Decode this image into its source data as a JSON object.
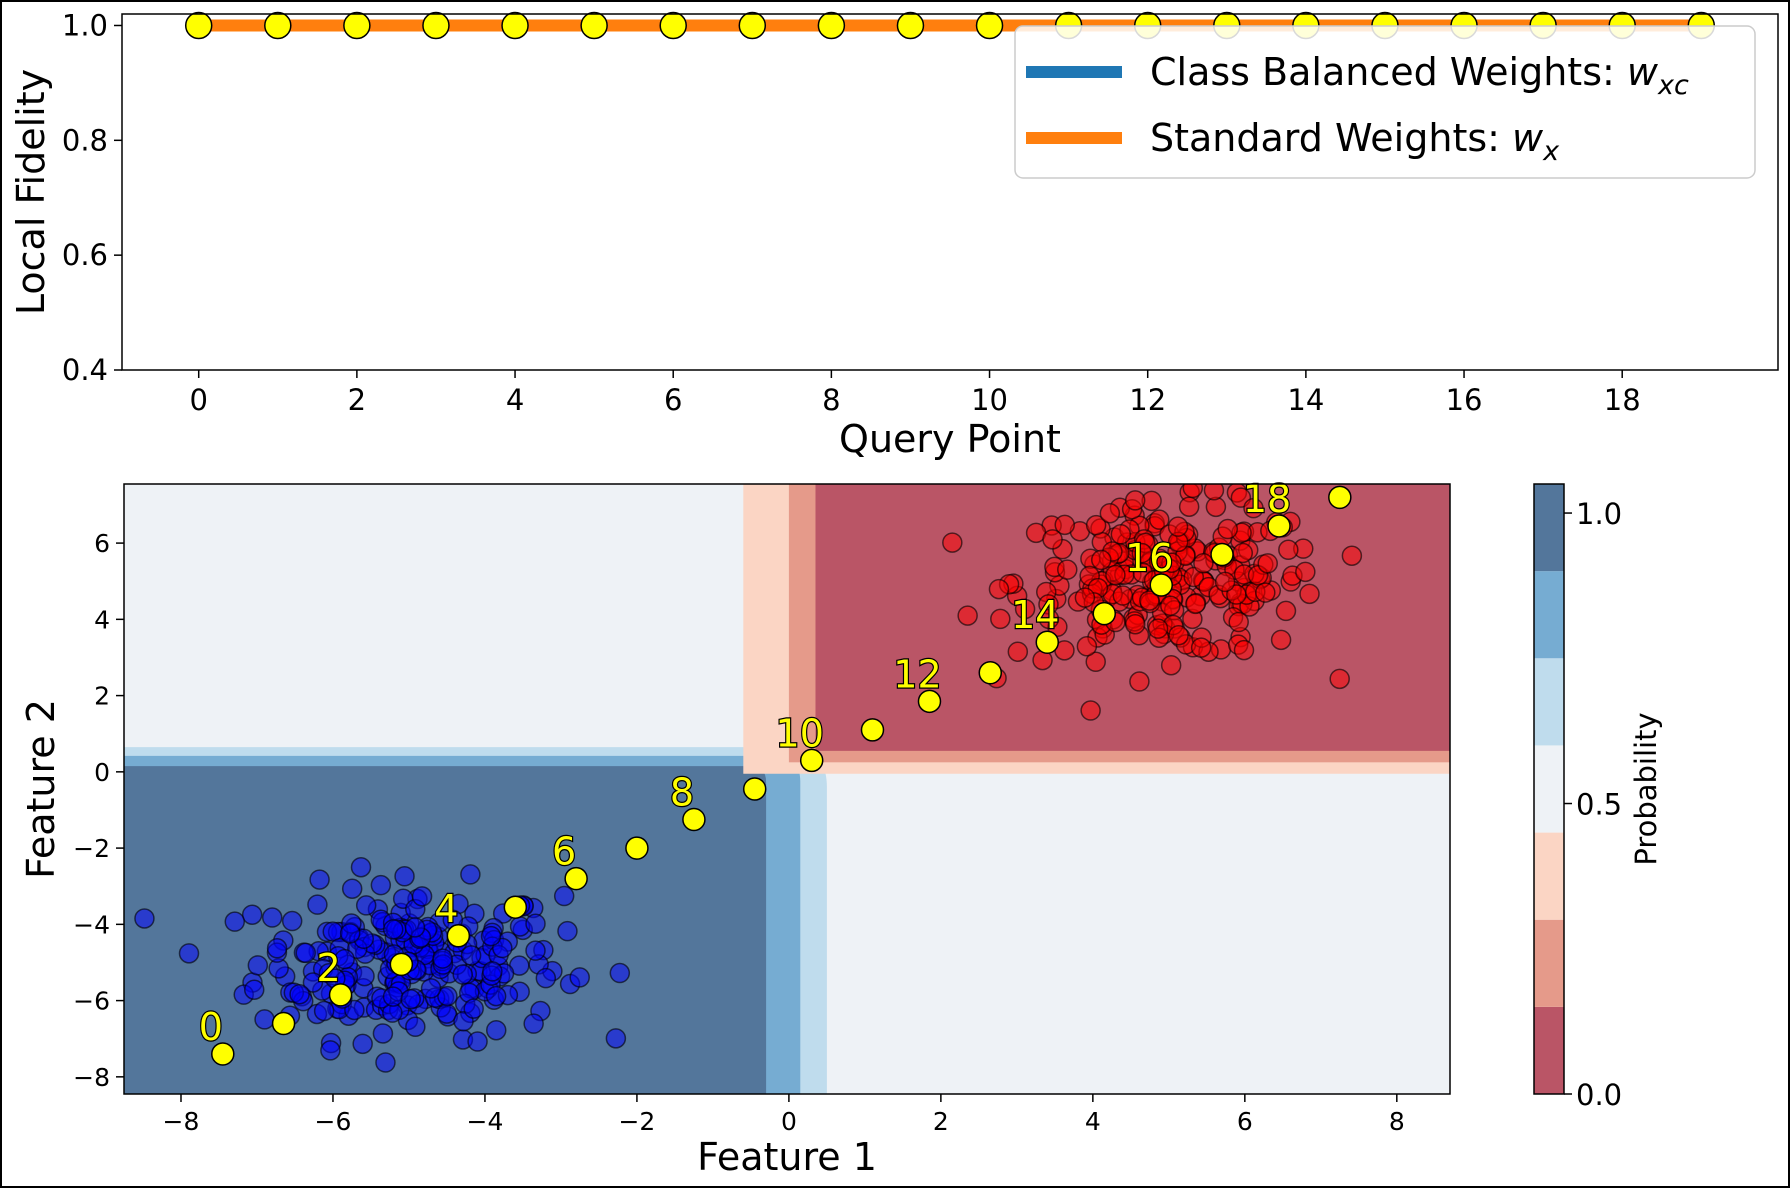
{
  "chart_data": [
    {
      "type": "line",
      "xlabel": "Query Point",
      "ylabel": "Local Fidelity",
      "xlim": [
        -0.97,
        19.97
      ],
      "ylim": [
        0.4,
        1.02
      ],
      "xticks": [
        0,
        2,
        4,
        6,
        8,
        10,
        12,
        14,
        16,
        18
      ],
      "yticks": [
        "0.4",
        "0.6",
        "0.8",
        "1.0"
      ],
      "ytick_values": [
        0.4,
        0.6,
        0.8,
        1.0
      ],
      "x": [
        0,
        1,
        2,
        3,
        4,
        5,
        6,
        7,
        8,
        9,
        10,
        11,
        12,
        13,
        14,
        15,
        16,
        17,
        18,
        19
      ],
      "series": [
        {
          "name": "Class Balanced Weights: ",
          "math": "w",
          "sub": "xc",
          "color": "#1f77b4",
          "values": [
            1,
            1,
            1,
            1,
            1,
            1,
            1,
            1,
            1,
            1,
            1,
            1,
            1,
            1,
            1,
            1,
            1,
            1,
            1,
            1
          ]
        },
        {
          "name": "Standard Weights: ",
          "math": "w",
          "sub": "x",
          "color": "#ff7f0e",
          "values": [
            1,
            1,
            1,
            1,
            1,
            1,
            1,
            1,
            1,
            1,
            1,
            1,
            1,
            1,
            1,
            1,
            1,
            1,
            1,
            1
          ]
        }
      ],
      "markers": {
        "color": "#ffff00",
        "edge": "#000000",
        "values": [
          1,
          1,
          1,
          1,
          1,
          1,
          1,
          1,
          1,
          1,
          1,
          1,
          1,
          1,
          1,
          1,
          1,
          1,
          1,
          1
        ]
      },
      "grid": false,
      "legend": "top-right"
    },
    {
      "type": "scatter",
      "xlabel": "Feature 1",
      "ylabel": "Feature 2",
      "xlim": [
        -8.75,
        8.7
      ],
      "ylim": [
        -8.45,
        7.55
      ],
      "xticks": [
        "−8",
        "−6",
        "−4",
        "−2",
        "0",
        "2",
        "4",
        "6",
        "8"
      ],
      "xtick_values": [
        -8,
        -6,
        -4,
        -2,
        0,
        2,
        4,
        6,
        8
      ],
      "yticks": [
        "−8",
        "−6",
        "−4",
        "−2",
        "0",
        "2",
        "4",
        "6"
      ],
      "ytick_values": [
        -8,
        -6,
        -4,
        -2,
        0,
        2,
        4,
        6
      ],
      "background": {
        "type": "contourf",
        "levels": [
          0,
          0.15,
          0.3,
          0.45,
          0.6,
          0.75,
          0.9,
          1.05
        ],
        "colors": [
          "#ba5566",
          "#e59a8a",
          "#fbd5c4",
          "#eef2f6",
          "#bfdced",
          "#76acd2",
          "#53769b"
        ],
        "regions": [
          {
            "level_index": 0,
            "x": [
              0.35,
              8.7
            ],
            "y": [
              0.55,
              7.55
            ]
          },
          {
            "level_index": 6,
            "x": [
              -8.75,
              -0.3
            ],
            "y": [
              -8.45,
              0.15
            ]
          }
        ]
      },
      "query_points": {
        "color": "#ffff00",
        "x": [
          -7.45,
          -6.65,
          -5.9,
          -5.1,
          -4.35,
          -3.6,
          -2.8,
          -2.0,
          -1.25,
          -0.45,
          0.3,
          1.1,
          1.85,
          2.65,
          3.4,
          4.15,
          4.9,
          5.7,
          6.45,
          7.25
        ],
        "y": [
          -7.4,
          -6.6,
          -5.85,
          -5.05,
          -4.3,
          -3.55,
          -2.8,
          -2.0,
          -1.25,
          -0.45,
          0.3,
          1.1,
          1.85,
          2.6,
          3.4,
          4.15,
          4.9,
          5.7,
          6.45,
          7.2
        ],
        "labels": [
          "0",
          "",
          "2",
          "",
          "4",
          "",
          "6",
          "",
          "8",
          "",
          "10",
          "",
          "12",
          "",
          "14",
          "",
          "16",
          "",
          "18",
          ""
        ]
      },
      "clusters": [
        {
          "color": "#0000ff",
          "center": [
            -5.0,
            -5.0
          ],
          "spread": 1.0,
          "n": 250
        },
        {
          "color": "#ff0000",
          "center": [
            5.0,
            5.0
          ],
          "spread": 1.0,
          "n": 250
        }
      ],
      "colorbar": {
        "label": "Probability",
        "ticks": [
          "0.0",
          "0.5",
          "1.0"
        ],
        "tick_values": [
          0.0,
          0.5,
          1.0
        ],
        "range": [
          0,
          1.05
        ]
      }
    }
  ]
}
